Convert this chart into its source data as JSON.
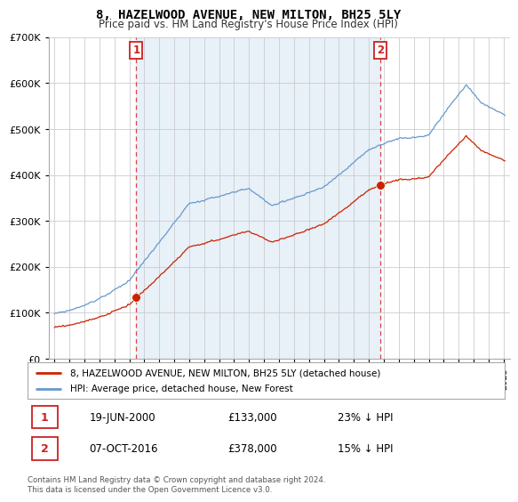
{
  "title": "8, HAZELWOOD AVENUE, NEW MILTON, BH25 5LY",
  "subtitle": "Price paid vs. HM Land Registry's House Price Index (HPI)",
  "legend_label_red": "8, HAZELWOOD AVENUE, NEW MILTON, BH25 5LY (detached house)",
  "legend_label_blue": "HPI: Average price, detached house, New Forest",
  "footnote": "Contains HM Land Registry data © Crown copyright and database right 2024.\nThis data is licensed under the Open Government Licence v3.0.",
  "marker1_date": "19-JUN-2000",
  "marker1_price": 133000,
  "marker1_label": "23% ↓ HPI",
  "marker1_year": 2000.47,
  "marker2_date": "07-OCT-2016",
  "marker2_price": 378000,
  "marker2_label": "15% ↓ HPI",
  "marker2_year": 2016.77,
  "ylim_max": 700000,
  "xlim_start": 1994.6,
  "xlim_end": 2025.4,
  "red_color": "#cc2200",
  "blue_color": "#6699cc",
  "vline_color": "#dd4444",
  "marker_box_color": "#cc2222",
  "bg_fill_color": "#e8f0f8",
  "background_color": "#ffffff",
  "grid_color": "#cccccc",
  "title_fontsize": 10,
  "subtitle_fontsize": 8.5
}
